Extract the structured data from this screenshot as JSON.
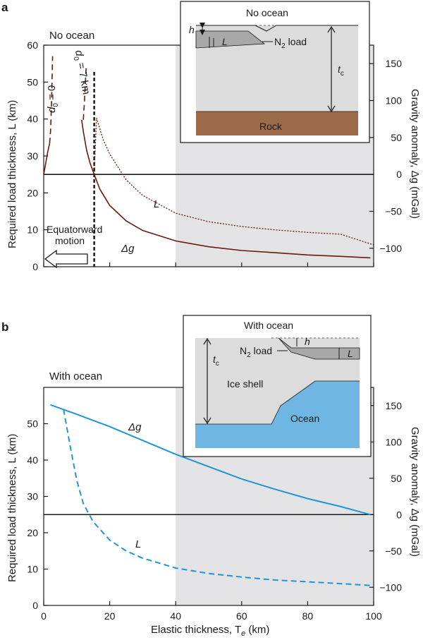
{
  "figure": {
    "panel_a": {
      "letter": "a",
      "heading": "No ocean",
      "label_d0_zero": "d",
      "label_d0_zero_sub": "0",
      "label_d0_zero_val": " = 0",
      "label_d0_seven": "d",
      "label_d0_seven_sub": "0",
      "label_d0_seven_val": " = 7 km",
      "curve_label_L": "L",
      "curve_label_dg": "Δg",
      "arrow_label_1": "Equatorward",
      "arrow_label_2": "motion",
      "inset": {
        "title": "No ocean",
        "h": "h",
        "L": "L",
        "load": "N",
        "load_sub": "2",
        "load_rest": " load",
        "tc": "t",
        "tc_sub": "c",
        "bottom": "Rock"
      }
    },
    "panel_b": {
      "letter": "b",
      "heading": "With ocean",
      "curve_label_L": "L",
      "curve_label_dg": "Δg",
      "inset": {
        "title": "With ocean",
        "h": "h",
        "L": "L",
        "load": "N",
        "load_sub": "2",
        "load_rest": " load",
        "tc": "t",
        "tc_sub": "c",
        "shell": "Ice shell",
        "bottom": "Ocean"
      }
    },
    "left_axis_label": "Required load thickness, L (km)",
    "right_axis_label": "Gravity anomaly, Δg (mGal)",
    "x_axis_label": "Elastic thickness, T",
    "x_axis_label_sub": "e",
    "x_axis_label_unit": " (km)"
  },
  "colors": {
    "panel_a_curve": "#6b1a0f",
    "panel_b_curve": "#1f95d8",
    "shade": "#e3e3e5",
    "rock": "#9c6b4a",
    "ocean": "#6fb6e2",
    "ice": "#dddddd"
  },
  "chart_data": [
    {
      "type": "line",
      "panel": "a",
      "xlim": [
        0,
        100
      ],
      "ylim": [
        0,
        60
      ],
      "y2lim": [
        -125,
        175
      ],
      "xticks": [
        0,
        20,
        40,
        60,
        80,
        100
      ],
      "yticks": [
        0,
        10,
        20,
        30,
        40,
        50,
        60
      ],
      "y2ticks": [
        -100,
        -50,
        0,
        50,
        100,
        150
      ],
      "shaded_region_x": [
        40,
        100
      ],
      "vertical_line_x": 15.3,
      "series": [
        {
          "name": "L",
          "axis": "left",
          "style": "dotted",
          "x": [
            15.3,
            16,
            18,
            20,
            25,
            30,
            40,
            50,
            60,
            70,
            80,
            90,
            100
          ],
          "y": [
            25,
            40.3,
            34.5,
            30.5,
            23.5,
            19.3,
            14.5,
            12.2,
            10.9,
            10.0,
            9.3,
            8.8,
            5.9
          ]
        },
        {
          "name": "Δg",
          "axis": "right",
          "style": "solid",
          "x": [
            11.5,
            12,
            13,
            14,
            15.3,
            17,
            20,
            25,
            30,
            40,
            50,
            60,
            70,
            80,
            90,
            99
          ],
          "y": [
            74,
            58,
            33,
            16,
            0,
            -20,
            -42,
            -63,
            -76,
            -90,
            -98,
            -103,
            -106,
            -109,
            -111,
            -113
          ]
        },
        {
          "name": "d0 = 0",
          "axis": "right",
          "style": "solid",
          "x": [
            0,
            0.6,
            1.2,
            1.8
          ],
          "y": [
            0,
            15,
            30,
            42
          ]
        },
        {
          "name": "d0 = 0",
          "axis": "right",
          "style": "dashed",
          "x": [
            1.8,
            2.1,
            2.4,
            2.7
          ],
          "y": [
            42,
            60,
            100,
            160
          ]
        },
        {
          "name": "d0 = 7 km",
          "axis": "right",
          "style": "dashed",
          "x": [
            12.0,
            12.3,
            12.6,
            12.9
          ],
          "y": [
            74,
            96,
            122,
            148
          ]
        }
      ]
    },
    {
      "type": "line",
      "panel": "b",
      "xlim": [
        0,
        100
      ],
      "ylim": [
        0,
        60
      ],
      "y2lim": [
        -125,
        175
      ],
      "xticks": [
        0,
        20,
        40,
        60,
        80,
        100
      ],
      "yticks": [
        0,
        10,
        20,
        30,
        40,
        50
      ],
      "y2ticks": [
        -100,
        -50,
        0,
        50,
        100,
        150
      ],
      "shaded_region_x": [
        40,
        100
      ],
      "series": [
        {
          "name": "Δg",
          "axis": "right",
          "style": "solid",
          "x": [
            2,
            10,
            20,
            30,
            40,
            50,
            60,
            70,
            80,
            90,
            99
          ],
          "y": [
            151,
            138,
            121,
            102,
            83,
            66,
            49,
            35,
            22,
            11,
            0
          ]
        },
        {
          "name": "L",
          "axis": "left",
          "style": "dashed",
          "x": [
            6,
            8,
            10,
            12,
            15,
            20,
            25,
            30,
            40,
            50,
            60,
            70,
            80,
            90,
            99
          ],
          "y": [
            54,
            44,
            34.5,
            28,
            23,
            18,
            15,
            13,
            10.3,
            8.8,
            7.8,
            7.0,
            6.5,
            6.0,
            5.5
          ]
        }
      ]
    }
  ]
}
